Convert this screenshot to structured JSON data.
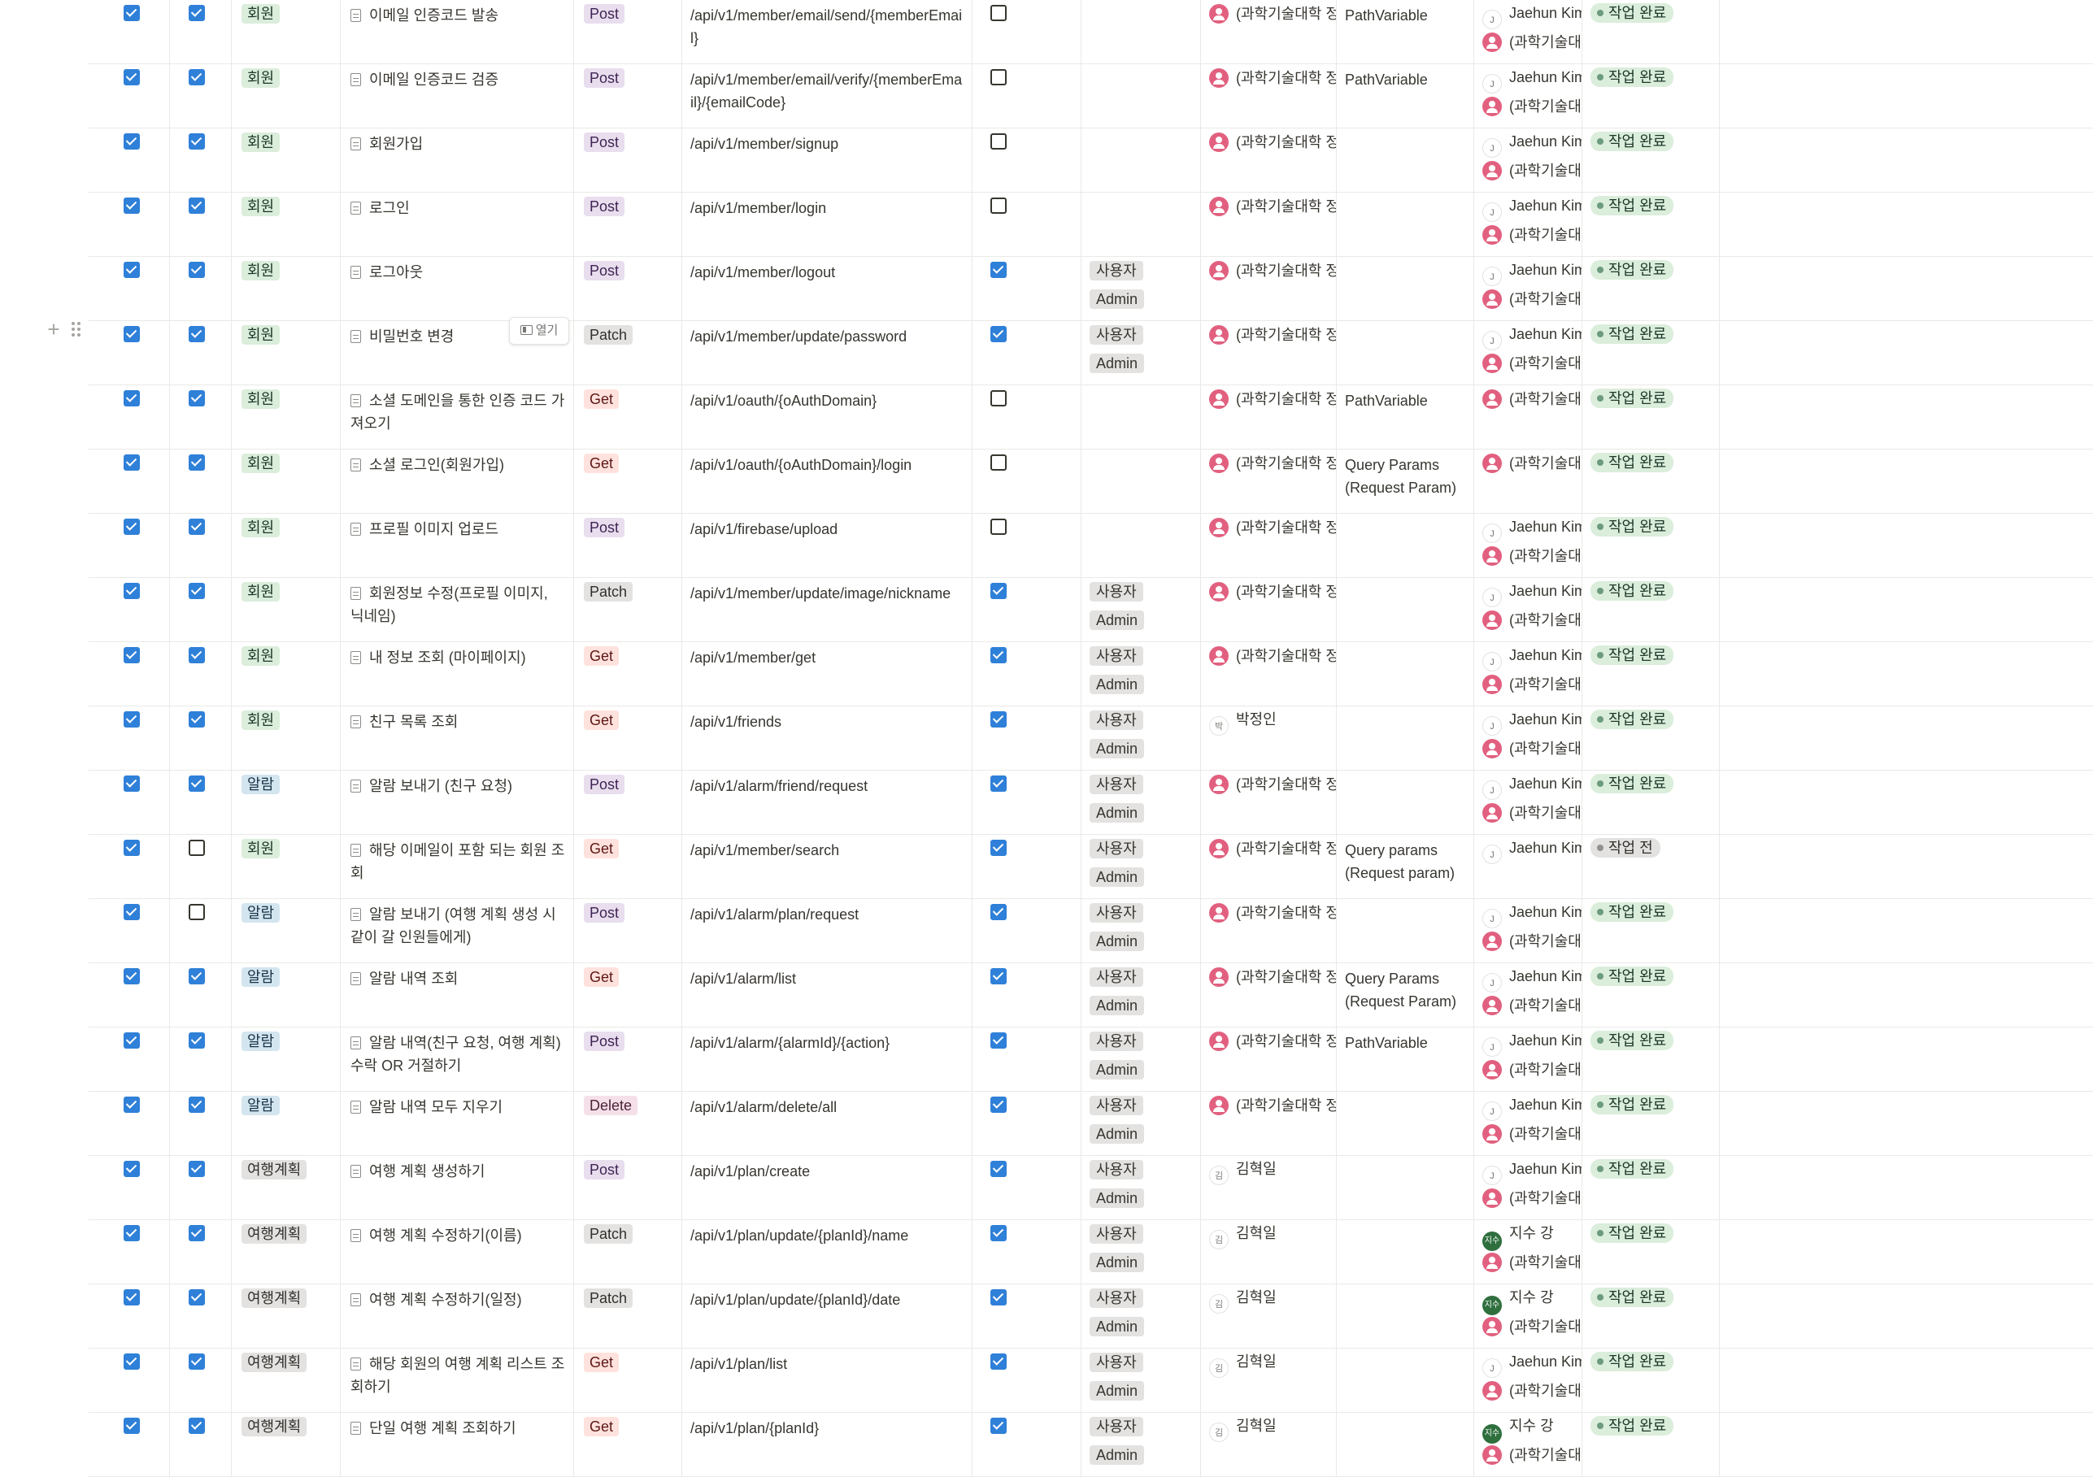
{
  "colors": {
    "checkbox_on": "#2f80d8",
    "status_done_bg": "#dbeddb",
    "status_done_dot": "#6c9b7d",
    "status_todo_bg": "#e3e2e0",
    "status_todo_dot": "#91918e"
  },
  "category_styles": {
    "회원": {
      "bg": "#dbeddb",
      "fg": "#1c3829"
    },
    "알람": {
      "bg": "#d3e5ef",
      "fg": "#183347"
    },
    "여행계획": {
      "bg": "#e3e2e0",
      "fg": "#32302c"
    }
  },
  "method_styles": {
    "Post": {
      "bg": "#e8deee",
      "fg": "#412454"
    },
    "Patch": {
      "bg": "#e3e2e0",
      "fg": "#32302c"
    },
    "Get": {
      "bg": "#ffe2dd",
      "fg": "#5d1715"
    },
    "Delete": {
      "bg": "#f5e0e9",
      "fg": "#4c2337"
    }
  },
  "open_button_label": "열기",
  "rows": [
    {
      "check_a": true,
      "check_b": true,
      "category": "회원",
      "title": "이메일 인증코드 발송",
      "method": "Post",
      "path": "/api/v1/member/email/send/{memberEmail}",
      "auth": false,
      "roles": [],
      "author": {
        "icon": "pink",
        "name": "(과학기술대학 정"
      },
      "note": "PathVariable",
      "assignees": [
        {
          "icon": "letter",
          "initial": "J",
          "name": "Jaehun Kim"
        },
        {
          "icon": "pink",
          "name": "(과학기술대학"
        }
      ],
      "status": "작업 완료",
      "status_type": "done"
    },
    {
      "check_a": true,
      "check_b": true,
      "category": "회원",
      "title": "이메일 인증코드 검증",
      "method": "Post",
      "path": "/api/v1/member/email/verify/{memberEmail}/{emailCode}",
      "auth": false,
      "roles": [],
      "author": {
        "icon": "pink",
        "name": "(과학기술대학 정"
      },
      "note": "PathVariable",
      "assignees": [
        {
          "icon": "letter",
          "initial": "J",
          "name": "Jaehun Kim"
        },
        {
          "icon": "pink",
          "name": "(과학기술대학"
        }
      ],
      "status": "작업 완료",
      "status_type": "done"
    },
    {
      "check_a": true,
      "check_b": true,
      "category": "회원",
      "title": "회원가입",
      "method": "Post",
      "path": "/api/v1/member/signup",
      "auth": false,
      "roles": [],
      "author": {
        "icon": "pink",
        "name": "(과학기술대학 정"
      },
      "note": "",
      "assignees": [
        {
          "icon": "letter",
          "initial": "J",
          "name": "Jaehun Kim"
        },
        {
          "icon": "pink",
          "name": "(과학기술대학"
        }
      ],
      "status": "작업 완료",
      "status_type": "done"
    },
    {
      "check_a": true,
      "check_b": true,
      "category": "회원",
      "title": "로그인",
      "method": "Post",
      "path": "/api/v1/member/login",
      "auth": false,
      "roles": [],
      "author": {
        "icon": "pink",
        "name": "(과학기술대학 정"
      },
      "note": "",
      "assignees": [
        {
          "icon": "letter",
          "initial": "J",
          "name": "Jaehun Kim"
        },
        {
          "icon": "pink",
          "name": "(과학기술대학"
        }
      ],
      "status": "작업 완료",
      "status_type": "done"
    },
    {
      "check_a": true,
      "check_b": true,
      "category": "회원",
      "title": "로그아웃",
      "method": "Post",
      "path": "/api/v1/member/logout",
      "auth": true,
      "roles": [
        "사용자",
        "Admin"
      ],
      "author": {
        "icon": "pink",
        "name": "(과학기술대학 정"
      },
      "note": "",
      "assignees": [
        {
          "icon": "letter",
          "initial": "J",
          "name": "Jaehun Kim"
        },
        {
          "icon": "pink",
          "name": "(과학기술대학"
        }
      ],
      "status": "작업 완료",
      "status_type": "done"
    },
    {
      "check_a": true,
      "check_b": true,
      "category": "회원",
      "title": "비밀번호 변경",
      "method": "Patch",
      "path": "/api/v1/member/update/password",
      "auth": true,
      "roles": [
        "사용자",
        "Admin"
      ],
      "author": {
        "icon": "pink",
        "name": "(과학기술대학 정"
      },
      "note": "",
      "assignees": [
        {
          "icon": "letter",
          "initial": "J",
          "name": "Jaehun Kim"
        },
        {
          "icon": "pink",
          "name": "(과학기술대학"
        }
      ],
      "status": "작업 완료",
      "status_type": "done"
    },
    {
      "check_a": true,
      "check_b": true,
      "category": "회원",
      "title": "소셜 도메인을 통한 인증 코드 가져오기",
      "method": "Get",
      "path": "/api/v1/oauth/{oAuthDomain}",
      "auth": false,
      "roles": [],
      "author": {
        "icon": "pink",
        "name": "(과학기술대학 정"
      },
      "note": "PathVariable",
      "assignees": [
        {
          "icon": "pink",
          "name": "(과학기술대학"
        }
      ],
      "status": "작업 완료",
      "status_type": "done"
    },
    {
      "check_a": true,
      "check_b": true,
      "category": "회원",
      "title": "소셜 로그인(회원가입)",
      "method": "Get",
      "path": "/api/v1/oauth/{oAuthDomain}/login",
      "auth": false,
      "roles": [],
      "author": {
        "icon": "pink",
        "name": "(과학기술대학 정"
      },
      "note": "Query Params (Request Param)",
      "assignees": [
        {
          "icon": "pink",
          "name": "(과학기술대학"
        }
      ],
      "status": "작업 완료",
      "status_type": "done"
    },
    {
      "check_a": true,
      "check_b": true,
      "category": "회원",
      "title": "프로필 이미지 업로드",
      "method": "Post",
      "path": "/api/v1/firebase/upload",
      "auth": false,
      "roles": [],
      "author": {
        "icon": "pink",
        "name": "(과학기술대학 정"
      },
      "note": "",
      "assignees": [
        {
          "icon": "letter",
          "initial": "J",
          "name": "Jaehun Kim"
        },
        {
          "icon": "pink",
          "name": "(과학기술대학"
        }
      ],
      "status": "작업 완료",
      "status_type": "done"
    },
    {
      "check_a": true,
      "check_b": true,
      "category": "회원",
      "title": "회원정보 수정(프로필 이미지, 닉네임)",
      "method": "Patch",
      "path": "/api/v1/member/update/image/nickname",
      "auth": true,
      "roles": [
        "사용자",
        "Admin"
      ],
      "author": {
        "icon": "pink",
        "name": "(과학기술대학 정"
      },
      "note": "",
      "assignees": [
        {
          "icon": "letter",
          "initial": "J",
          "name": "Jaehun Kim"
        },
        {
          "icon": "pink",
          "name": "(과학기술대학"
        }
      ],
      "status": "작업 완료",
      "status_type": "done"
    },
    {
      "check_a": true,
      "check_b": true,
      "category": "회원",
      "title": "내 정보 조회 (마이페이지)",
      "method": "Get",
      "path": "/api/v1/member/get",
      "auth": true,
      "roles": [
        "사용자",
        "Admin"
      ],
      "author": {
        "icon": "pink",
        "name": "(과학기술대학 정"
      },
      "note": "",
      "assignees": [
        {
          "icon": "letter",
          "initial": "J",
          "name": "Jaehun Kim"
        },
        {
          "icon": "pink",
          "name": "(과학기술대학"
        }
      ],
      "status": "작업 완료",
      "status_type": "done"
    },
    {
      "check_a": true,
      "check_b": true,
      "category": "회원",
      "title": "친구 목록 조회",
      "method": "Get",
      "path": "/api/v1/friends",
      "auth": true,
      "roles": [
        "사용자",
        "Admin"
      ],
      "author": {
        "icon": "letter",
        "initial": "박",
        "name": "박정인"
      },
      "note": "",
      "assignees": [
        {
          "icon": "letter",
          "initial": "J",
          "name": "Jaehun Kim"
        },
        {
          "icon": "pink",
          "name": "(과학기술대학"
        }
      ],
      "status": "작업 완료",
      "status_type": "done"
    },
    {
      "check_a": true,
      "check_b": true,
      "category": "알람",
      "title": "알람 보내기 (친구 요청)",
      "method": "Post",
      "path": "/api/v1/alarm/friend/request",
      "auth": true,
      "roles": [
        "사용자",
        "Admin"
      ],
      "author": {
        "icon": "pink",
        "name": "(과학기술대학 정"
      },
      "note": "",
      "assignees": [
        {
          "icon": "letter",
          "initial": "J",
          "name": "Jaehun Kim"
        },
        {
          "icon": "pink",
          "name": "(과학기술대학"
        }
      ],
      "status": "작업 완료",
      "status_type": "done"
    },
    {
      "check_a": true,
      "check_b": false,
      "category": "회원",
      "title": "해당 이메일이 포함 되는 회원 조회",
      "method": "Get",
      "path": "/api/v1/member/search",
      "auth": true,
      "roles": [
        "사용자",
        "Admin"
      ],
      "author": {
        "icon": "pink",
        "name": "(과학기술대학 정"
      },
      "note": "Query params (Request param)",
      "assignees": [
        {
          "icon": "letter",
          "initial": "J",
          "name": "Jaehun Kim"
        }
      ],
      "status": "작업 전",
      "status_type": "todo"
    },
    {
      "check_a": true,
      "check_b": false,
      "category": "알람",
      "title": "알람 보내기 (여행 계획 생성 시 같이 갈 인원들에게)",
      "method": "Post",
      "path": "/api/v1/alarm/plan/request",
      "auth": true,
      "roles": [
        "사용자",
        "Admin"
      ],
      "author": {
        "icon": "pink",
        "name": "(과학기술대학 정"
      },
      "note": "",
      "assignees": [
        {
          "icon": "letter",
          "initial": "J",
          "name": "Jaehun Kim"
        },
        {
          "icon": "pink",
          "name": "(과학기술대학"
        }
      ],
      "status": "작업 완료",
      "status_type": "done"
    },
    {
      "check_a": true,
      "check_b": true,
      "category": "알람",
      "title": "알람 내역 조회",
      "method": "Get",
      "path": "/api/v1/alarm/list",
      "auth": true,
      "roles": [
        "사용자",
        "Admin"
      ],
      "author": {
        "icon": "pink",
        "name": "(과학기술대학 정"
      },
      "note": "Query Params (Request Param)",
      "assignees": [
        {
          "icon": "letter",
          "initial": "J",
          "name": "Jaehun Kim"
        },
        {
          "icon": "pink",
          "name": "(과학기술대학"
        }
      ],
      "status": "작업 완료",
      "status_type": "done"
    },
    {
      "check_a": true,
      "check_b": true,
      "category": "알람",
      "title": "알람 내역(친구 요청, 여행 계획) 수락 OR 거절하기",
      "method": "Post",
      "path": "/api/v1/alarm/{alarmId}/{action}",
      "auth": true,
      "roles": [
        "사용자",
        "Admin"
      ],
      "author": {
        "icon": "pink",
        "name": "(과학기술대학 정"
      },
      "note": "PathVariable",
      "assignees": [
        {
          "icon": "letter",
          "initial": "J",
          "name": "Jaehun Kim"
        },
        {
          "icon": "pink",
          "name": "(과학기술대학"
        }
      ],
      "status": "작업 완료",
      "status_type": "done"
    },
    {
      "check_a": true,
      "check_b": true,
      "category": "알람",
      "title": "알람 내역 모두 지우기",
      "method": "Delete",
      "path": "/api/v1/alarm/delete/all",
      "auth": true,
      "roles": [
        "사용자",
        "Admin"
      ],
      "author": {
        "icon": "pink",
        "name": "(과학기술대학 정"
      },
      "note": "",
      "assignees": [
        {
          "icon": "letter",
          "initial": "J",
          "name": "Jaehun Kim"
        },
        {
          "icon": "pink",
          "name": "(과학기술대학"
        }
      ],
      "status": "작업 완료",
      "status_type": "done"
    },
    {
      "check_a": true,
      "check_b": true,
      "category": "여행계획",
      "title": "여행 계획 생성하기",
      "method": "Post",
      "path": "/api/v1/plan/create",
      "auth": true,
      "roles": [
        "사용자",
        "Admin"
      ],
      "author": {
        "icon": "letter",
        "initial": "김",
        "name": "김혁일"
      },
      "note": "",
      "assignees": [
        {
          "icon": "letter",
          "initial": "J",
          "name": "Jaehun Kim"
        },
        {
          "icon": "pink",
          "name": "(과학기술대학"
        }
      ],
      "status": "작업 완료",
      "status_type": "done"
    },
    {
      "check_a": true,
      "check_b": true,
      "category": "여행계획",
      "title": "여행 계획 수정하기(이름)",
      "method": "Patch",
      "path": "/api/v1/plan/update/{planId}/name",
      "auth": true,
      "roles": [
        "사용자",
        "Admin"
      ],
      "author": {
        "icon": "letter",
        "initial": "김",
        "name": "김혁일"
      },
      "note": "",
      "assignees": [
        {
          "icon": "green",
          "initial": "지수",
          "name": "지수 강"
        },
        {
          "icon": "pink",
          "name": "(과학기술대학"
        }
      ],
      "status": "작업 완료",
      "status_type": "done"
    },
    {
      "check_a": true,
      "check_b": true,
      "category": "여행계획",
      "title": "여행 계획 수정하기(일정)",
      "method": "Patch",
      "path": "/api/v1/plan/update/{planId}/date",
      "auth": true,
      "roles": [
        "사용자",
        "Admin"
      ],
      "author": {
        "icon": "letter",
        "initial": "김",
        "name": "김혁일"
      },
      "note": "",
      "assignees": [
        {
          "icon": "green",
          "initial": "지수",
          "name": "지수 강"
        },
        {
          "icon": "pink",
          "name": "(과학기술대학"
        }
      ],
      "status": "작업 완료",
      "status_type": "done"
    },
    {
      "check_a": true,
      "check_b": true,
      "category": "여행계획",
      "title": "해당 회원의 여행 계획 리스트 조회하기",
      "method": "Get",
      "path": "/api/v1/plan/list",
      "auth": true,
      "roles": [
        "사용자",
        "Admin"
      ],
      "author": {
        "icon": "letter",
        "initial": "김",
        "name": "김혁일"
      },
      "note": "",
      "assignees": [
        {
          "icon": "letter",
          "initial": "J",
          "name": "Jaehun Kim"
        },
        {
          "icon": "pink",
          "name": "(과학기술대학"
        }
      ],
      "status": "작업 완료",
      "status_type": "done"
    },
    {
      "check_a": true,
      "check_b": true,
      "category": "여행계획",
      "title": "단일 여행 계획 조회하기",
      "method": "Get",
      "path": "/api/v1/plan/{planId}",
      "auth": true,
      "roles": [
        "사용자",
        "Admin"
      ],
      "author": {
        "icon": "letter",
        "initial": "김",
        "name": "김혁일"
      },
      "note": "",
      "assignees": [
        {
          "icon": "green",
          "initial": "지수",
          "name": "지수 강"
        },
        {
          "icon": "pink",
          "name": "(과학기술대학"
        }
      ],
      "status": "작업 완료",
      "status_type": "done"
    }
  ]
}
